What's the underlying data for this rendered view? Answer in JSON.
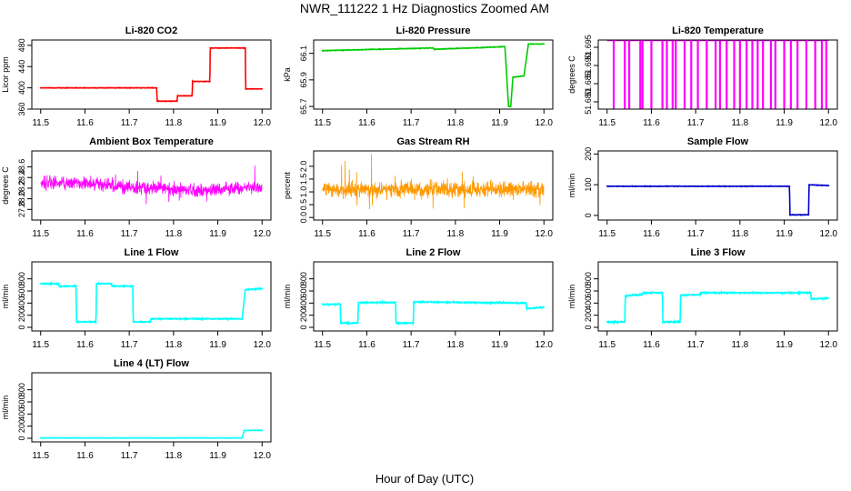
{
  "figure": {
    "title": "NWR_111222  1 Hz Diagnostics Zoomed AM",
    "xlabel": "Hour of Day (UTC)"
  },
  "chart_data": [
    {
      "type": "line",
      "title": "Li-820 CO2",
      "ylabel": "Licor ppm",
      "color": "#ff0000",
      "xlim": [
        11.48,
        12.02
      ],
      "ylim": [
        360,
        490
      ],
      "xticks": [
        "11.5",
        "11.6",
        "11.7",
        "11.8",
        "11.9",
        "12.0"
      ],
      "yticks": [
        "360",
        "400",
        "440",
        "480"
      ],
      "noise": 0.6,
      "x": [
        11.5,
        11.762,
        11.763,
        11.808,
        11.809,
        11.842,
        11.843,
        11.882,
        11.883,
        11.962,
        11.963,
        12.0
      ],
      "y": [
        400,
        400,
        375,
        375,
        385,
        385,
        412,
        412,
        475,
        475,
        398,
        398
      ]
    },
    {
      "type": "line",
      "title": "Li-820 Pressure",
      "ylabel": "kPa",
      "color": "#00cc00",
      "xlim": [
        11.48,
        12.02
      ],
      "ylim": [
        65.68,
        66.2
      ],
      "xticks": [
        "11.5",
        "11.6",
        "11.7",
        "11.8",
        "11.9",
        "12.0"
      ],
      "yticks": [
        "65.7",
        "65.9",
        "66.1"
      ],
      "noise": 0.003,
      "x": [
        11.5,
        11.75,
        11.752,
        11.912,
        11.92,
        11.925,
        11.93,
        11.955,
        11.962,
        11.965,
        11.975,
        12.0
      ],
      "y": [
        66.12,
        66.14,
        66.13,
        66.15,
        65.7,
        65.7,
        65.92,
        65.93,
        66.1,
        66.17,
        66.17,
        66.17
      ]
    },
    {
      "type": "spikes",
      "title": "Li-820 Temperature",
      "ylabel": "degrees C",
      "color": "#ff00ff",
      "xlim": [
        11.48,
        12.02
      ],
      "ylim": [
        51.678,
        51.697
      ],
      "xticks": [
        "11.5",
        "11.6",
        "11.7",
        "11.8",
        "11.9",
        "12.0"
      ],
      "yticks": [
        "51.680",
        "51.685",
        "51.690",
        "51.695"
      ],
      "top": 51.697,
      "bottom": 51.678,
      "x": [
        11.515,
        11.54,
        11.55,
        11.575,
        11.58,
        11.6,
        11.625,
        11.635,
        11.648,
        11.655,
        11.675,
        11.69,
        11.705,
        11.725,
        11.745,
        11.755,
        11.77,
        11.787,
        11.8,
        11.815,
        11.828,
        11.84,
        11.852,
        11.87,
        11.88,
        11.9,
        11.915,
        11.93,
        11.95,
        11.97,
        11.985,
        11.995
      ]
    },
    {
      "type": "noise",
      "title": "Ambient Box Temperature",
      "ylabel": "degrees C",
      "color": "#ff00ff",
      "xlim": [
        11.48,
        12.02
      ],
      "ylim": [
        27.6,
        28.9
      ],
      "xticks": [
        "11.5",
        "11.6",
        "11.7",
        "11.8",
        "11.9",
        "12.0"
      ],
      "yticks": [
        "27.8",
        "28.0",
        "28.2",
        "28.4",
        "28.6"
      ],
      "x": [
        11.5,
        11.6,
        11.7,
        11.75,
        11.85,
        11.95,
        12.0
      ],
      "y": [
        28.3,
        28.3,
        28.22,
        28.2,
        28.15,
        28.2,
        28.2
      ],
      "spread": 0.18,
      "min": 27.65,
      "max": 28.8
    },
    {
      "type": "noise",
      "title": "Gas Stream RH",
      "ylabel": "percent",
      "color": "#ff9900",
      "xlim": [
        11.48,
        12.02
      ],
      "ylim": [
        -0.1,
        2.6
      ],
      "xticks": [
        "11.5",
        "11.6",
        "11.7",
        "11.8",
        "11.9",
        "12.0"
      ],
      "yticks": [
        "0.0",
        "0.5",
        "1.0",
        "1.5",
        "2.0"
      ],
      "x": [
        11.5,
        12.0
      ],
      "y": [
        1.1,
        1.1
      ],
      "spread": 0.45,
      "min": 0.0,
      "max": 2.5
    },
    {
      "type": "line",
      "title": "Sample Flow",
      "ylabel": "ml/min",
      "color": "#0000cc",
      "xlim": [
        11.48,
        12.02
      ],
      "ylim": [
        -15,
        210
      ],
      "xticks": [
        "11.5",
        "11.6",
        "11.7",
        "11.8",
        "11.9",
        "12.0"
      ],
      "yticks": [
        "0",
        "100",
        "200"
      ],
      "noise": 1.2,
      "x": [
        11.5,
        11.912,
        11.913,
        11.955,
        11.956,
        12.0
      ],
      "y": [
        95,
        95,
        2,
        2,
        100,
        97
      ]
    },
    {
      "type": "line",
      "title": "Line 1 Flow",
      "ylabel": "ml/min",
      "color": "#00ffff",
      "xlim": [
        11.48,
        12.02
      ],
      "ylim": [
        -60,
        1080
      ],
      "xticks": [
        "11.5",
        "11.6",
        "11.7",
        "11.8",
        "11.9",
        "12.0"
      ],
      "yticks": [
        "0",
        "200",
        "400",
        "600",
        "800"
      ],
      "noise": 12,
      "x": [
        11.5,
        11.54,
        11.541,
        11.58,
        11.581,
        11.625,
        11.626,
        11.66,
        11.661,
        11.708,
        11.709,
        11.748,
        11.749,
        11.955,
        11.962,
        12.0
      ],
      "y": [
        720,
        720,
        680,
        680,
        90,
        90,
        720,
        720,
        680,
        680,
        90,
        90,
        140,
        140,
        620,
        640
      ]
    },
    {
      "type": "line",
      "title": "Line 2 Flow",
      "ylabel": "ml/min",
      "color": "#00ffff",
      "xlim": [
        11.48,
        12.02
      ],
      "ylim": [
        -60,
        1080
      ],
      "xticks": [
        "11.5",
        "11.6",
        "11.7",
        "11.8",
        "11.9",
        "12.0"
      ],
      "yticks": [
        "0",
        "200",
        "400",
        "600",
        "800"
      ],
      "noise": 14,
      "x": [
        11.5,
        11.54,
        11.541,
        11.58,
        11.581,
        11.665,
        11.666,
        11.705,
        11.706,
        11.96,
        11.961,
        12.0
      ],
      "y": [
        380,
        380,
        70,
        70,
        410,
        410,
        70,
        70,
        420,
        400,
        310,
        330
      ]
    },
    {
      "type": "line",
      "title": "Line 3 Flow",
      "ylabel": "ml/min",
      "color": "#00ffff",
      "xlim": [
        11.48,
        12.02
      ],
      "ylim": [
        -60,
        1080
      ],
      "xticks": [
        "11.5",
        "11.6",
        "11.7",
        "11.8",
        "11.9",
        "12.0"
      ],
      "yticks": [
        "0",
        "200",
        "400",
        "600",
        "800"
      ],
      "noise": 14,
      "x": [
        11.5,
        11.54,
        11.541,
        11.58,
        11.581,
        11.625,
        11.626,
        11.665,
        11.666,
        11.71,
        11.711,
        11.96,
        11.961,
        12.0
      ],
      "y": [
        90,
        90,
        520,
        540,
        570,
        570,
        90,
        90,
        530,
        540,
        570,
        570,
        470,
        480
      ]
    },
    {
      "type": "line",
      "title": "Line 4 (LT) Flow",
      "ylabel": "ml/min",
      "color": "#00ffff",
      "xlim": [
        11.48,
        12.02
      ],
      "ylim": [
        -60,
        1080
      ],
      "xticks": [
        "11.5",
        "11.6",
        "11.7",
        "11.8",
        "11.9",
        "12.0"
      ],
      "yticks": [
        "0",
        "200",
        "400",
        "600",
        "800"
      ],
      "noise": 4,
      "x": [
        11.5,
        11.955,
        11.96,
        12.0
      ],
      "y": [
        5,
        5,
        130,
        130
      ]
    }
  ]
}
